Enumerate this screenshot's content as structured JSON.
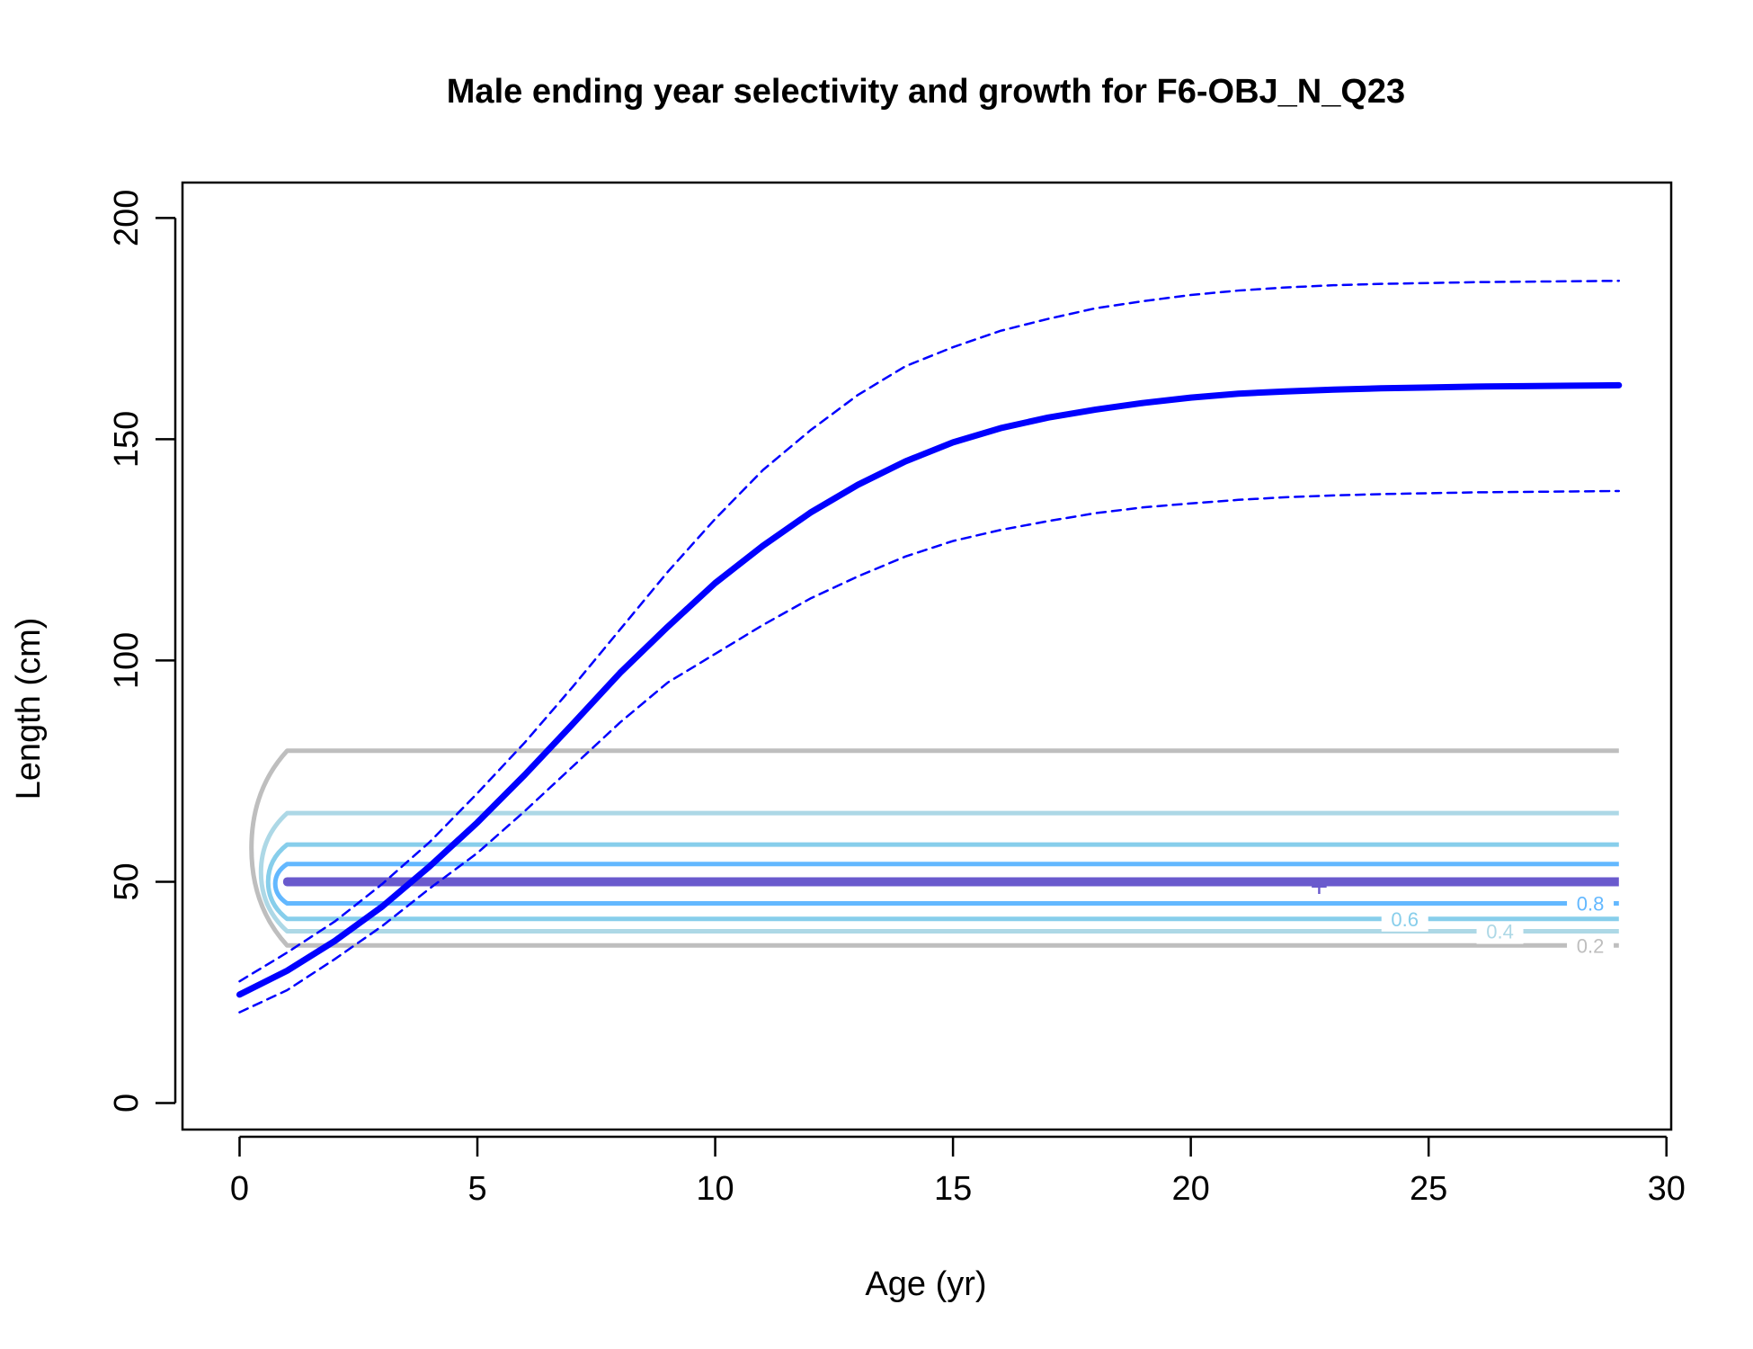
{
  "chart_data": {
    "type": "line",
    "title": "Male ending year selectivity and growth for F6-OBJ_N_Q23",
    "xlabel": "Age (yr)",
    "ylabel": "Length (cm)",
    "xlim": [
      -1.2,
      30.1
    ],
    "ylim": [
      -6,
      208
    ],
    "x_ticks": [
      0,
      5,
      10,
      15,
      20,
      25,
      30
    ],
    "y_ticks": [
      0,
      50,
      100,
      150,
      200
    ],
    "x_tick_labels": [
      "0",
      "5",
      "10",
      "15",
      "20",
      "25",
      "30"
    ],
    "y_tick_labels": [
      "0",
      "50",
      "100",
      "150",
      "200"
    ],
    "grid": false,
    "legend": "none",
    "series": [
      {
        "role": "mean growth",
        "style": "solid-thick",
        "color": "#0000ff",
        "x": [
          0,
          1,
          2,
          3,
          4,
          5,
          6,
          7,
          8,
          9,
          10,
          11,
          12,
          13,
          14,
          15,
          16,
          17,
          18,
          19,
          20,
          21,
          22,
          23,
          24,
          25,
          26,
          27,
          28,
          29
        ],
        "y": [
          24.5,
          29.9,
          36.6,
          44.4,
          53.5,
          63.4,
          74.2,
          85.6,
          97.2,
          107.6,
          117.5,
          125.9,
          133.4,
          139.7,
          145.0,
          149.3,
          152.5,
          154.9,
          156.7,
          158.2,
          159.4,
          160.3,
          160.8,
          161.2,
          161.5,
          161.7,
          161.9,
          162.0,
          162.1,
          162.2
        ]
      },
      {
        "role": "upper interval",
        "style": "dashed",
        "color": "#0000ff",
        "x": [
          0,
          1,
          2,
          3,
          4,
          5,
          6,
          7,
          8,
          9,
          10,
          11,
          12,
          13,
          14,
          15,
          16,
          17,
          18,
          19,
          20,
          21,
          22,
          23,
          24,
          25,
          26,
          27,
          28,
          29
        ],
        "y": [
          27.5,
          34.0,
          41.0,
          49.5,
          59.0,
          70.0,
          81.5,
          94.0,
          107.0,
          120.0,
          132.0,
          143.0,
          152.0,
          160.0,
          166.5,
          170.8,
          174.5,
          177.2,
          179.6,
          181.2,
          182.6,
          183.6,
          184.3,
          184.8,
          185.1,
          185.3,
          185.5,
          185.6,
          185.7,
          185.8
        ]
      },
      {
        "role": "lower interval",
        "style": "dashed",
        "color": "#0000ff",
        "x": [
          0,
          1,
          2,
          3,
          4,
          5,
          6,
          7,
          8,
          9,
          10,
          11,
          12,
          13,
          14,
          15,
          16,
          17,
          18,
          19,
          20,
          21,
          22,
          23,
          24,
          25,
          26,
          27,
          28,
          29
        ],
        "y": [
          20.5,
          25.5,
          32.5,
          40.0,
          48.5,
          56.5,
          66.0,
          76.0,
          86.0,
          95.0,
          101.5,
          108.0,
          114.0,
          119.0,
          123.5,
          127.0,
          129.5,
          131.5,
          133.3,
          134.6,
          135.5,
          136.3,
          136.9,
          137.3,
          137.6,
          137.8,
          138.0,
          138.1,
          138.2,
          138.3
        ]
      }
    ],
    "contours": [
      {
        "level": "0.2",
        "label": "0.2",
        "color": "#bebebe",
        "upper": 79.6,
        "lower": 35.6,
        "nose_x": 0.25,
        "label_x": 28.4
      },
      {
        "level": "0.4",
        "label": "0.4",
        "color": "#add8e6",
        "upper": 65.5,
        "lower": 38.8,
        "nose_x": 0.45,
        "label_x": 26.5
      },
      {
        "level": "0.6",
        "label": "0.6",
        "color": "#87ceeb",
        "upper": 58.4,
        "lower": 41.6,
        "nose_x": 0.6,
        "label_x": 24.5
      },
      {
        "level": "0.8",
        "label": "0.8",
        "color": "#63b8ff",
        "upper": 54.0,
        "lower": 45.1,
        "nose_x": 0.75,
        "label_x": 28.4
      },
      {
        "level": "1.0",
        "label": "",
        "color": "#6a5acd",
        "upper": 50.1,
        "lower": 49.9,
        "nose_x": 1.0,
        "label_x": null
      }
    ],
    "contour_x_range": [
      1,
      29
    ],
    "marker": {
      "symbol": "+",
      "x": 22.7,
      "y": 49.5,
      "color": "#6a5acd"
    }
  }
}
